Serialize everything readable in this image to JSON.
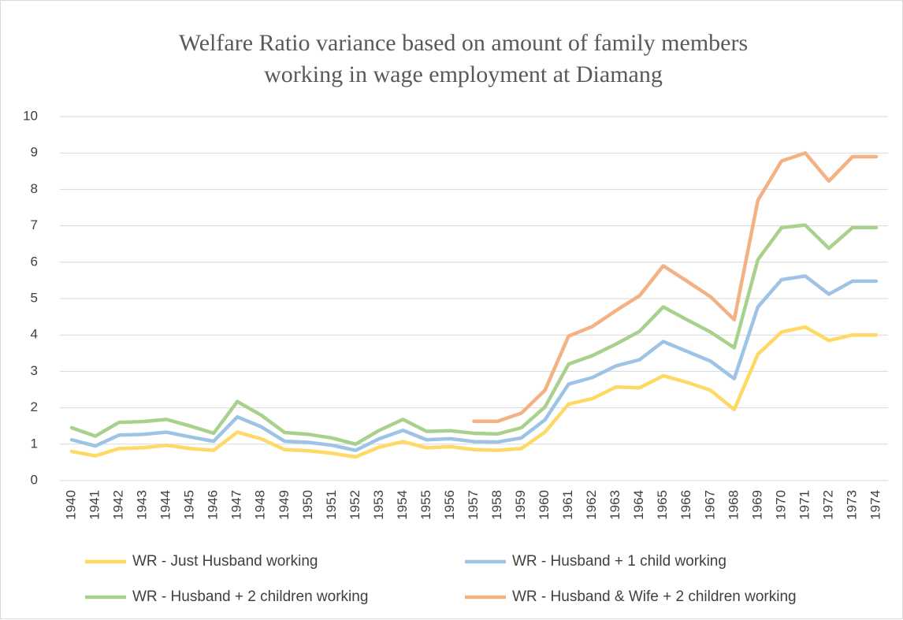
{
  "chart_data": {
    "type": "line",
    "title": [
      "Welfare Ratio variance based on amount of  family members",
      "working in wage employment at Diamang"
    ],
    "categories": [
      "1940",
      "1941",
      "1942",
      "1943",
      "1944",
      "1945",
      "1946",
      "1947",
      "1948",
      "1949",
      "1950",
      "1951",
      "1952",
      "1953",
      "1954",
      "1955",
      "1956",
      "1957",
      "1958",
      "1959",
      "1960",
      "1961",
      "1962",
      "1963",
      "1964",
      "1965",
      "1966",
      "1967",
      "1968",
      "1969",
      "1970",
      "1971",
      "1972",
      "1973",
      "1974"
    ],
    "series": [
      {
        "name": "WR - Just Husband working",
        "color": "#ffd966",
        "values": [
          0.8,
          0.68,
          0.88,
          0.9,
          0.97,
          0.88,
          0.83,
          1.33,
          1.15,
          0.85,
          0.82,
          0.75,
          0.65,
          0.92,
          1.07,
          0.9,
          0.93,
          0.85,
          0.83,
          0.88,
          1.33,
          2.1,
          2.25,
          2.57,
          2.55,
          2.88,
          2.7,
          2.48,
          1.95,
          3.47,
          4.08,
          4.22,
          3.85,
          4.0,
          4.0
        ]
      },
      {
        "name": "WR - Husband + 1 child working",
        "color": "#9dc3e6",
        "values": [
          1.12,
          0.95,
          1.25,
          1.27,
          1.33,
          1.2,
          1.08,
          1.75,
          1.48,
          1.08,
          1.05,
          0.97,
          0.83,
          1.15,
          1.38,
          1.12,
          1.15,
          1.07,
          1.06,
          1.17,
          1.67,
          2.65,
          2.83,
          3.15,
          3.32,
          3.82,
          3.55,
          3.28,
          2.8,
          4.77,
          5.52,
          5.62,
          5.12,
          5.48,
          5.48
        ]
      },
      {
        "name": "WR - Husband + 2 children working",
        "color": "#a9d18e",
        "values": [
          1.45,
          1.22,
          1.6,
          1.62,
          1.68,
          1.5,
          1.3,
          2.17,
          1.8,
          1.32,
          1.27,
          1.17,
          1.0,
          1.38,
          1.68,
          1.35,
          1.37,
          1.3,
          1.28,
          1.45,
          2.02,
          3.2,
          3.43,
          3.75,
          4.1,
          4.77,
          4.42,
          4.08,
          3.65,
          6.07,
          6.95,
          7.02,
          6.38,
          6.95,
          6.95
        ]
      },
      {
        "name": "WR - Husband & Wife + 2 children working",
        "color": "#f4b183",
        "values": [
          null,
          null,
          null,
          null,
          null,
          null,
          null,
          null,
          null,
          null,
          null,
          null,
          null,
          null,
          null,
          null,
          null,
          1.63,
          1.63,
          1.85,
          2.48,
          3.97,
          4.23,
          4.67,
          5.08,
          5.9,
          5.48,
          5.05,
          4.42,
          7.7,
          8.78,
          9.0,
          8.23,
          8.9,
          8.9
        ]
      }
    ],
    "ylim": [
      0,
      10
    ],
    "yticks": [
      0,
      1,
      2,
      3,
      4,
      5,
      6,
      7,
      8,
      9,
      10
    ],
    "grid": true
  }
}
